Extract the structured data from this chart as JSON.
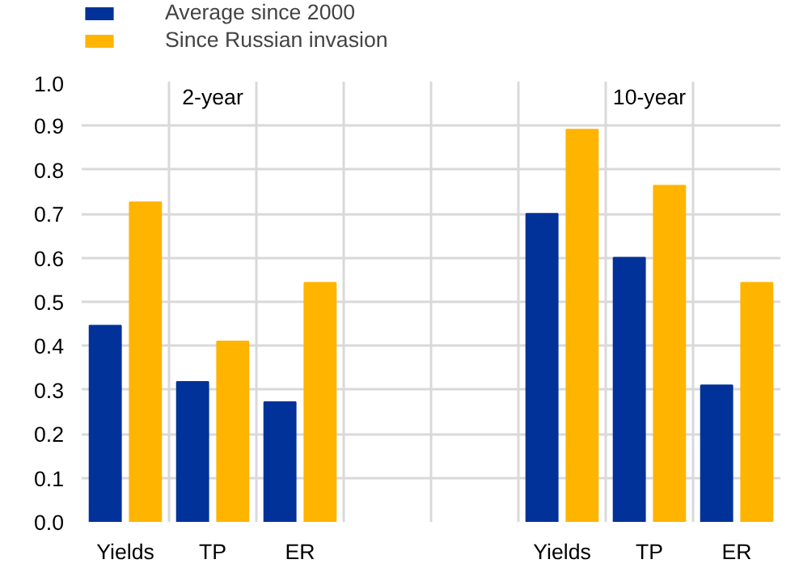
{
  "chart_data": {
    "type": "bar",
    "categories": [
      "Yields",
      "TP",
      "ER",
      null,
      null,
      "Yields",
      "TP",
      "ER"
    ],
    "series": [
      {
        "name": "Average since 2000",
        "color": "#003299",
        "values": [
          0.446,
          0.318,
          0.272,
          null,
          null,
          0.7,
          0.6,
          0.31
        ]
      },
      {
        "name": "Since Russian invasion",
        "color": "#ffb400",
        "values": [
          0.726,
          0.41,
          0.543,
          null,
          null,
          0.891,
          0.764,
          0.543
        ]
      }
    ],
    "annotations": [
      "2-year",
      "10-year"
    ],
    "ylim": [
      0,
      1.0
    ],
    "yticks": [
      {
        "value": 0,
        "label": "0.0"
      },
      {
        "value": 0.1,
        "label": "0.1"
      },
      {
        "value": 0.2,
        "label": "0.2"
      },
      {
        "value": 0.3,
        "label": "0.3"
      },
      {
        "value": 0.4,
        "label": "0.4"
      },
      {
        "value": 0.5,
        "label": "0.5"
      },
      {
        "value": 0.6,
        "label": "0.6"
      },
      {
        "value": 0.7,
        "label": "0.7"
      },
      {
        "value": 0.8,
        "label": "0.8"
      },
      {
        "value": 0.9,
        "label": "0.9"
      },
      {
        "value": 1.0,
        "label": "1.0"
      }
    ],
    "grid": true,
    "legend": "top left"
  }
}
